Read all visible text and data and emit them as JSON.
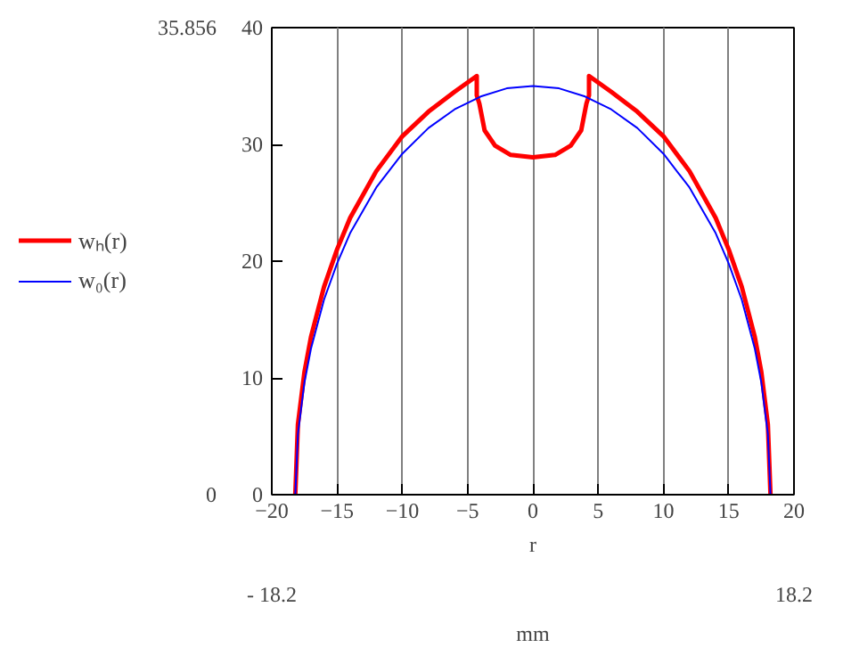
{
  "chart_data": {
    "type": "line",
    "xlabel": "r\nmm",
    "xlim": [
      -20,
      20
    ],
    "ylim": [
      0,
      40
    ],
    "xticks": [
      -20,
      -15,
      -10,
      -5,
      0,
      5,
      10,
      15,
      20
    ],
    "yticks": [
      0,
      10,
      20,
      30,
      40
    ],
    "grid": "x",
    "legend": "left",
    "marker": "none",
    "line_style": "solid",
    "annotations": [
      "35.856",
      "0",
      "- 18.2",
      "18.2"
    ],
    "series": [
      {
        "name": "wₕ(r)",
        "color": "#ff0000",
        "x": [
          -18.2,
          -18,
          -17.5,
          -17,
          -16,
          -15,
          -14,
          -12,
          -10,
          -8,
          -6,
          -4.3,
          -4.3,
          -4.1,
          -3.7,
          -2.9,
          -1.7,
          0,
          1.7,
          2.9,
          3.7,
          4.1,
          4.3,
          4.3,
          6,
          8,
          10,
          12,
          14,
          15,
          16,
          17,
          17.5,
          18,
          18.2
        ],
        "values": [
          0,
          6,
          10.5,
          13.5,
          17.8,
          21,
          23.7,
          27.7,
          30.7,
          32.8,
          34.5,
          35.856,
          34.2,
          33.5,
          31.2,
          29.9,
          29.1,
          28.9,
          29.1,
          29.9,
          31.2,
          33.5,
          34.2,
          35.856,
          34.5,
          32.8,
          30.7,
          27.7,
          23.7,
          21,
          17.8,
          13.5,
          10.5,
          6,
          0
        ]
      },
      {
        "name": "w₀(r)",
        "color": "#0000ff",
        "x": [
          -18.2,
          -18,
          -17.5,
          -17,
          -16,
          -15,
          -14,
          -12,
          -10,
          -8,
          -6,
          -4,
          -2,
          0,
          2,
          4,
          6,
          8,
          10,
          12,
          14,
          15,
          16,
          17,
          17.5,
          18,
          18.2
        ],
        "values": [
          0,
          5.2,
          9.6,
          12.5,
          16.7,
          19.8,
          22.4,
          26.3,
          29.2,
          31.4,
          33.0,
          34.1,
          34.8,
          35,
          34.8,
          34.1,
          33.0,
          31.4,
          29.2,
          26.3,
          22.4,
          19.8,
          16.7,
          12.5,
          9.6,
          5.2,
          0
        ]
      }
    ]
  }
}
